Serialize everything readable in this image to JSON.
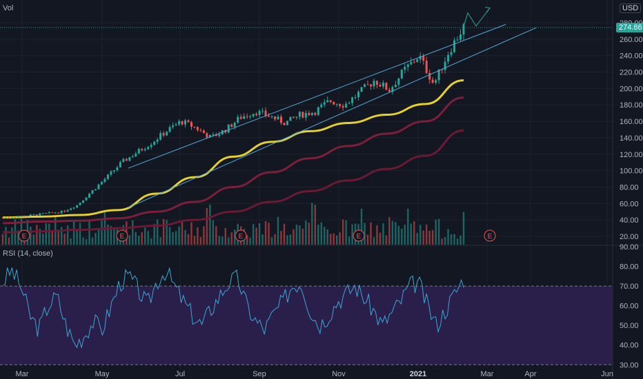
{
  "header": {
    "vol_label": "Vol",
    "currency": "USD"
  },
  "indicator": {
    "rsi_label": "RSI (14, close)"
  },
  "last_price": "274.66",
  "colors": {
    "background": "#131722",
    "up": "#26a69a",
    "down": "#ef5350",
    "ma_fast": "#e6d02c",
    "ma_mid": "#7e1f3a",
    "ma_slow": "#6b1a33",
    "channel": "#4fa8d8",
    "rsi_line": "#3ba7d6",
    "rsi_band": "#2a1f4a"
  },
  "chart_data": [
    {
      "type": "candlestick",
      "x_ticks": [
        "Mar",
        "May",
        "Jul",
        "Sep",
        "Nov",
        "2021",
        "Mar",
        "Apr",
        "Jun"
      ],
      "y_ticks": [
        20,
        40,
        60,
        80,
        100,
        120,
        140,
        160,
        180,
        200,
        220,
        240,
        260,
        280
      ],
      "ylim": [
        10,
        290
      ],
      "earnings_markers": [
        "E",
        "E",
        "E",
        "E",
        "E"
      ],
      "moving_averages": [
        {
          "name": "",
          "color": "ma_fast",
          "values": [
            43,
            44,
            46,
            52,
            72,
            92,
            117,
            135,
            148,
            158,
            168,
            181,
            210
          ]
        },
        {
          "name": "",
          "color": "ma_mid",
          "values": [
            36,
            38,
            39,
            42,
            50,
            62,
            80,
            98,
            115,
            130,
            145,
            160,
            189
          ]
        },
        {
          "name": "",
          "color": "ma_slow",
          "values": [
            25,
            26,
            28,
            30,
            33,
            40,
            50,
            62,
            75,
            88,
            102,
            118,
            149
          ]
        }
      ],
      "channel_lines": [
        {
          "from": {
            "date": "2020-05-15",
            "price": 103
          },
          "to": {
            "date": "2021-02-25",
            "price": 278
          }
        },
        {
          "from": {
            "date": "2020-05-15",
            "price": 55
          },
          "to": {
            "date": "2021-03-20",
            "price": 274
          }
        }
      ],
      "price_path": [
        43,
        44,
        46,
        48,
        50,
        58,
        75,
        92,
        110,
        122,
        134,
        148,
        160,
        152,
        140,
        150,
        165,
        172,
        166,
        158,
        168,
        172,
        185,
        180,
        195,
        210,
        198,
        222,
        240,
        205,
        245,
        275
      ],
      "projection": [
        275,
        292,
        276,
        298
      ]
    },
    {
      "type": "line",
      "name": "RSI (14, close)",
      "y_ticks": [
        30,
        40,
        50,
        60,
        70,
        80,
        90
      ],
      "ylim": [
        28,
        90
      ],
      "band": [
        30,
        70
      ],
      "values": [
        72,
        78,
        70,
        55,
        48,
        60,
        65,
        50,
        40,
        45,
        52,
        48,
        60,
        72,
        75,
        68,
        60,
        72,
        78,
        70,
        62,
        55,
        50,
        58,
        65,
        72,
        74,
        60,
        52,
        48,
        56,
        62,
        70,
        72,
        58,
        50,
        55,
        62,
        66,
        70,
        64,
        58,
        50,
        56,
        62,
        70,
        72,
        60,
        50,
        58,
        66,
        74
      ]
    }
  ]
}
